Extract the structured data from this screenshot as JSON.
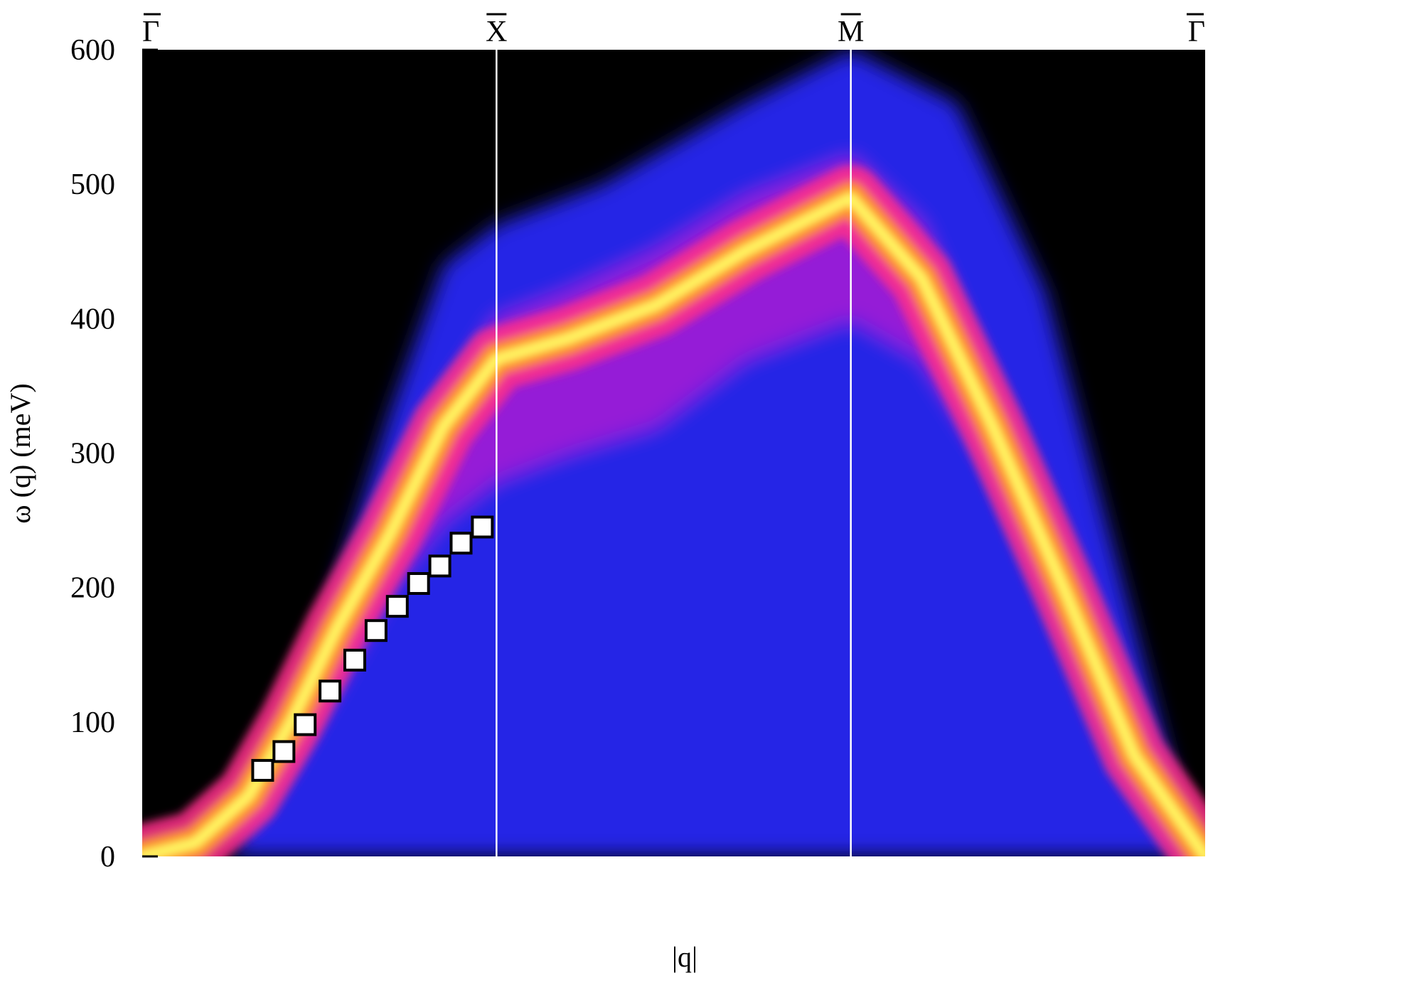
{
  "chart_data": {
    "type": "heatmap",
    "title": "",
    "xlabel": "|q|",
    "ylabel": "ω (q) (meV)",
    "ylim": [
      0,
      600
    ],
    "y_ticks": [
      0,
      100,
      200,
      300,
      400,
      500,
      600
    ],
    "x_ticks": [
      "Γ",
      "X",
      "M",
      "Γ"
    ],
    "x_tick_positions": [
      0,
      1,
      2,
      3
    ],
    "xlim": [
      0,
      3
    ],
    "grid": false,
    "legend": "none",
    "colormap": [
      "#000000",
      "#1010c0",
      "#2a2aff",
      "#9b1bd6",
      "#ff2d8a",
      "#ff9a1f",
      "#ffff66"
    ],
    "series": [
      {
        "type": "scatter",
        "marker": "square",
        "color": "#ffffff",
        "x": [
          0.34,
          0.4,
          0.46,
          0.53,
          0.6,
          0.66,
          0.72,
          0.78,
          0.84,
          0.9,
          0.96
        ],
        "y": [
          64,
          78,
          98,
          123,
          146,
          168,
          186,
          203,
          216,
          233,
          245
        ]
      }
    ]
  }
}
